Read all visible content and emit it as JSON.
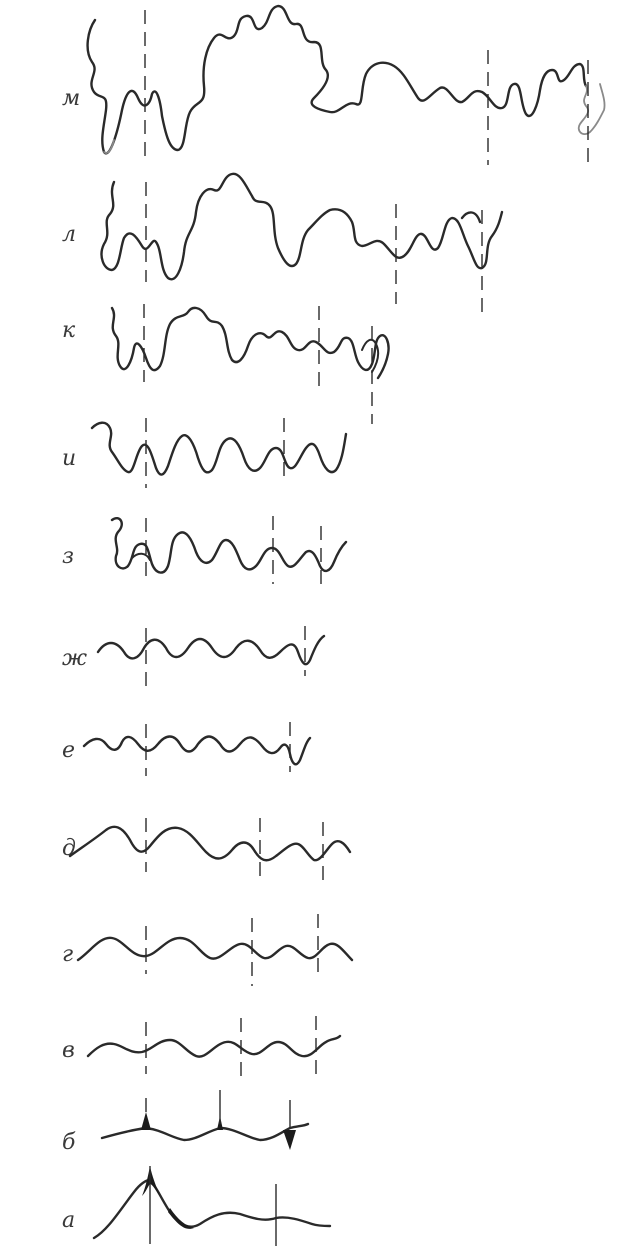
{
  "rows": [
    {
      "key": "m",
      "label": "м"
    },
    {
      "key": "l",
      "label": "л"
    },
    {
      "key": "k",
      "label": "к"
    },
    {
      "key": "i",
      "label": "и"
    },
    {
      "key": "z",
      "label": "з"
    },
    {
      "key": "zh",
      "label": "ж"
    },
    {
      "key": "e",
      "label": "е"
    },
    {
      "key": "d",
      "label": "д"
    },
    {
      "key": "g",
      "label": "г"
    },
    {
      "key": "v",
      "label": "в"
    },
    {
      "key": "b",
      "label": "б"
    },
    {
      "key": "a",
      "label": "а"
    }
  ]
}
